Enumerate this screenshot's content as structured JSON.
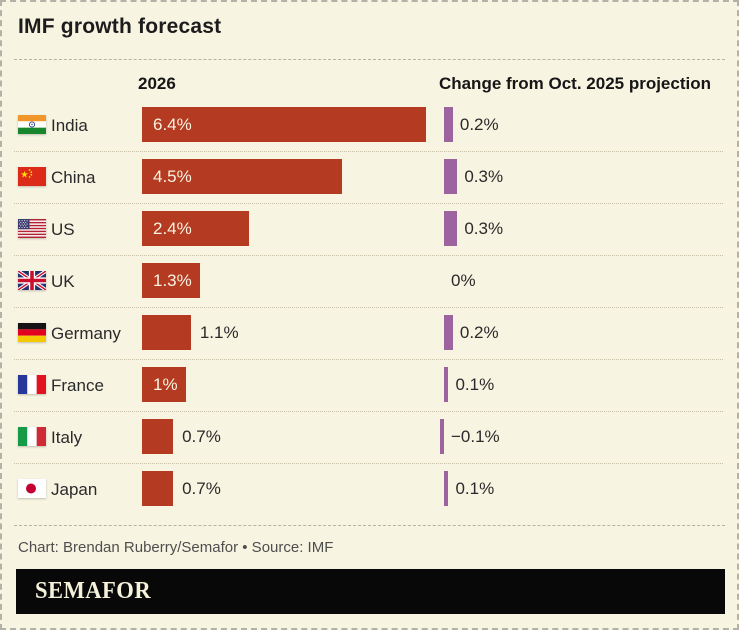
{
  "header": {
    "title": "IMF growth forecast"
  },
  "columns": {
    "growth": "2026",
    "change": "Change from Oct. 2025 projection"
  },
  "footer": {
    "credit": "Chart: Brendan Ruberry/Semafor • Source: IMF",
    "brand": "SEMAFOR"
  },
  "colors": {
    "background": "#f8f4e2",
    "growth_bar": "#b53a22",
    "change_bar": "#9c639e",
    "bar_label_light": "#f8f3e0",
    "text_dark": "#2a2a2a",
    "brand_bar": "#080808"
  },
  "chart_data": {
    "type": "bar",
    "title": "IMF growth forecast",
    "unit": "percent",
    "orientation": "horizontal",
    "grid": false,
    "legend": false,
    "columns": [
      "2026",
      "Change from Oct. 2025 projection"
    ],
    "categories": [
      "India",
      "China",
      "US",
      "UK",
      "Germany",
      "France",
      "Italy",
      "Japan"
    ],
    "series": [
      {
        "name": "2026 growth forecast (%)",
        "values": [
          6.4,
          4.5,
          2.4,
          1.3,
          1.1,
          1.0,
          0.7,
          0.7
        ]
      },
      {
        "name": "Change from Oct. 2025 projection (pp)",
        "values": [
          0.2,
          0.3,
          0.3,
          0.0,
          0.2,
          0.1,
          -0.1,
          0.1
        ]
      }
    ],
    "xlim_growth": [
      0,
      6.6
    ],
    "rows": [
      {
        "country": "India",
        "flag": "india",
        "flag_icon": "india-flag-icon",
        "growth": 6.4,
        "growth_label": "6.4%",
        "growth_label_position": "inside",
        "change": 0.2,
        "change_label": "0.2%"
      },
      {
        "country": "China",
        "flag": "china",
        "flag_icon": "china-flag-icon",
        "growth": 4.5,
        "growth_label": "4.5%",
        "growth_label_position": "inside",
        "change": 0.3,
        "change_label": "0.3%"
      },
      {
        "country": "US",
        "flag": "us",
        "flag_icon": "us-flag-icon",
        "growth": 2.4,
        "growth_label": "2.4%",
        "growth_label_position": "inside",
        "change": 0.3,
        "change_label": "0.3%"
      },
      {
        "country": "UK",
        "flag": "uk",
        "flag_icon": "uk-flag-icon",
        "growth": 1.3,
        "growth_label": "1.3%",
        "growth_label_position": "inside",
        "change": 0.0,
        "change_label": "0%"
      },
      {
        "country": "Germany",
        "flag": "germany",
        "flag_icon": "germany-flag-icon",
        "growth": 1.1,
        "growth_label": "1.1%",
        "growth_label_position": "outside",
        "change": 0.2,
        "change_label": "0.2%"
      },
      {
        "country": "France",
        "flag": "france",
        "flag_icon": "france-flag-icon",
        "growth": 1.0,
        "growth_label": "1%",
        "growth_label_position": "inside",
        "change": 0.1,
        "change_label": "0.1%"
      },
      {
        "country": "Italy",
        "flag": "italy",
        "flag_icon": "italy-flag-icon",
        "growth": 0.7,
        "growth_label": "0.7%",
        "growth_label_position": "outside",
        "change": -0.1,
        "change_label": "−0.1%"
      },
      {
        "country": "Japan",
        "flag": "japan",
        "flag_icon": "japan-flag-icon",
        "growth": 0.7,
        "growth_label": "0.7%",
        "growth_label_position": "outside",
        "change": 0.1,
        "change_label": "0.1%"
      }
    ]
  }
}
